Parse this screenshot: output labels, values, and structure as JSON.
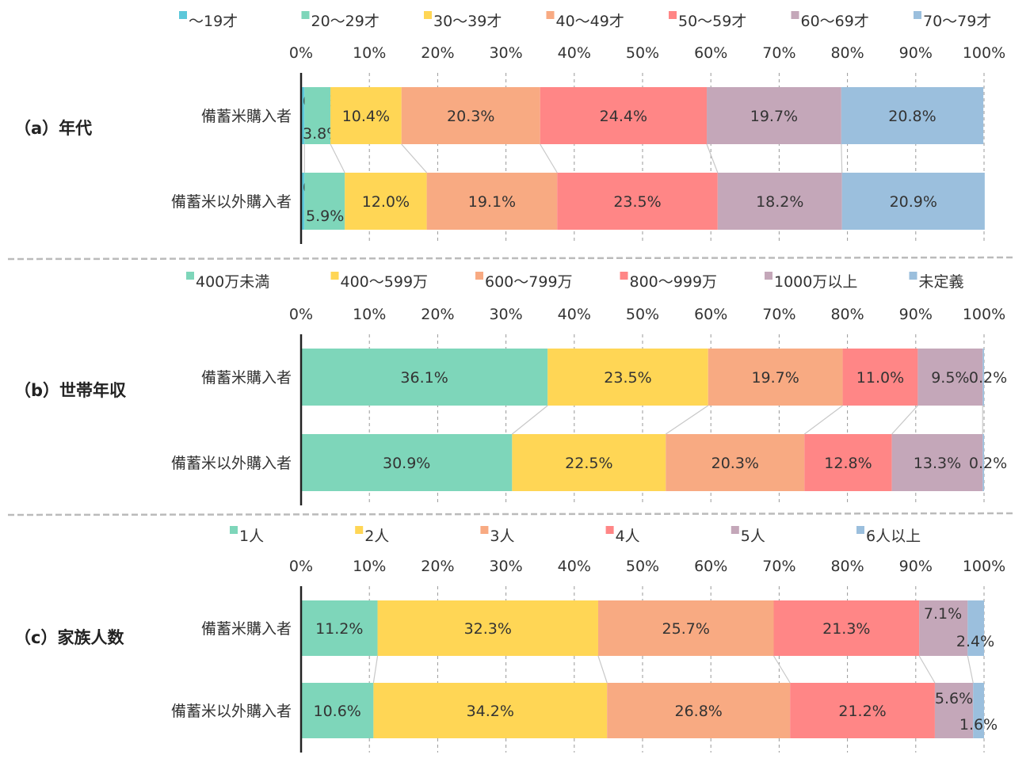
{
  "chart_data": [
    {
      "type": "bar",
      "orientation": "horizontal-stacked-100",
      "title": "（a）年代",
      "categories": [
        "備蓄米購入者",
        "備蓄米以外購入者"
      ],
      "xticks": [
        "0%",
        "10%",
        "20%",
        "30%",
        "40%",
        "50%",
        "60%",
        "70%",
        "80%",
        "90%",
        "100%"
      ],
      "xlim": [
        0,
        100
      ],
      "legend_position": "top",
      "series": [
        {
          "name": "～19才",
          "color": "#5CC8DA",
          "values": [
            0.5,
            0.5
          ]
        },
        {
          "name": "20～29才",
          "color": "#7ED6BA",
          "values": [
            3.8,
            5.9
          ]
        },
        {
          "name": "30～39才",
          "color": "#FFD655",
          "values": [
            10.4,
            12.0
          ]
        },
        {
          "name": "40～49才",
          "color": "#F8AA82",
          "values": [
            20.3,
            19.1
          ]
        },
        {
          "name": "50～59才",
          "color": "#FF8686",
          "values": [
            24.4,
            23.5
          ]
        },
        {
          "name": "60～69才",
          "color": "#C4A7B9",
          "values": [
            19.7,
            18.2
          ]
        },
        {
          "name": "70～79才",
          "color": "#9BBFDD",
          "values": [
            20.8,
            20.9
          ]
        }
      ]
    },
    {
      "type": "bar",
      "orientation": "horizontal-stacked-100",
      "title": "（b）世帯年収",
      "categories": [
        "備蓄米購入者",
        "備蓄米以外購入者"
      ],
      "xticks": [
        "0%",
        "10%",
        "20%",
        "30%",
        "40%",
        "50%",
        "60%",
        "70%",
        "80%",
        "90%",
        "100%"
      ],
      "xlim": [
        0,
        100
      ],
      "legend_position": "top",
      "series": [
        {
          "name": "400万未満",
          "color": "#7ED6BA",
          "values": [
            36.1,
            30.9
          ]
        },
        {
          "name": "400～599万",
          "color": "#FFD655",
          "values": [
            23.5,
            22.5
          ]
        },
        {
          "name": "600～799万",
          "color": "#F8AA82",
          "values": [
            19.7,
            20.3
          ]
        },
        {
          "name": "800～999万",
          "color": "#FF8686",
          "values": [
            11.0,
            12.8
          ]
        },
        {
          "name": "1000万以上",
          "color": "#C4A7B9",
          "values": [
            9.5,
            13.3
          ]
        },
        {
          "name": "未定義",
          "color": "#9BBFDD",
          "values": [
            0.2,
            0.2
          ]
        }
      ]
    },
    {
      "type": "bar",
      "orientation": "horizontal-stacked-100",
      "title": "（c）家族人数",
      "categories": [
        "備蓄米購入者",
        "備蓄米以外購入者"
      ],
      "xticks": [
        "0%",
        "10%",
        "20%",
        "30%",
        "40%",
        "50%",
        "60%",
        "70%",
        "80%",
        "90%",
        "100%"
      ],
      "xlim": [
        0,
        100
      ],
      "legend_position": "top",
      "series": [
        {
          "name": "1人",
          "color": "#7ED6BA",
          "values": [
            11.2,
            10.6
          ]
        },
        {
          "name": "2人",
          "color": "#FFD655",
          "values": [
            32.3,
            34.2
          ]
        },
        {
          "name": "3人",
          "color": "#F8AA82",
          "values": [
            25.7,
            26.8
          ]
        },
        {
          "name": "4人",
          "color": "#FF8686",
          "values": [
            21.3,
            21.2
          ]
        },
        {
          "name": "5人",
          "color": "#C4A7B9",
          "values": [
            7.1,
            5.6
          ]
        },
        {
          "name": "6人以上",
          "color": "#9BBFDD",
          "values": [
            2.4,
            1.6
          ]
        }
      ]
    }
  ]
}
